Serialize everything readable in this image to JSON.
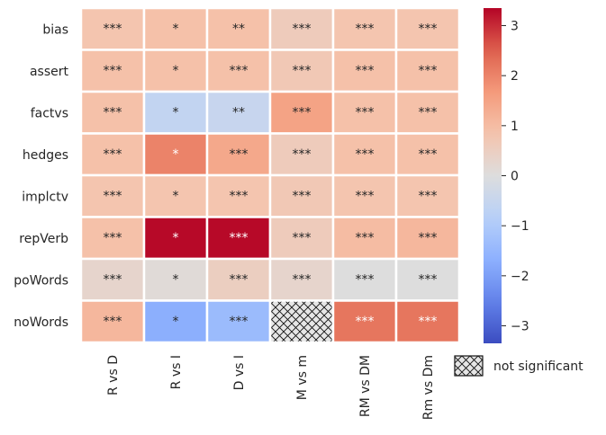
{
  "chart_data": {
    "type": "heatmap",
    "title": "",
    "rows": [
      "bias",
      "assert",
      "factvs",
      "hedges",
      "implctv",
      "repVerb",
      "poWords",
      "noWords"
    ],
    "columns": [
      "R vs D",
      "R vs I",
      "D vs I",
      "M vs m",
      "RM vs DM",
      "Rm vs Dm"
    ],
    "values": [
      [
        0.8,
        0.9,
        0.9,
        0.6,
        0.8,
        0.8
      ],
      [
        0.9,
        0.9,
        0.9,
        0.7,
        0.9,
        0.9
      ],
      [
        0.9,
        -0.6,
        -0.5,
        1.5,
        0.9,
        0.9
      ],
      [
        0.9,
        2.0,
        1.4,
        0.6,
        0.9,
        0.9
      ],
      [
        0.8,
        0.8,
        0.8,
        0.7,
        0.8,
        0.8
      ],
      [
        0.9,
        3.3,
        3.3,
        0.6,
        1.0,
        1.1
      ],
      [
        0.3,
        0.1,
        0.5,
        0.3,
        0.0,
        0.0
      ],
      [
        1.1,
        -1.7,
        -1.4,
        null,
        2.2,
        2.2
      ]
    ],
    "significance": [
      [
        "***",
        "*",
        "**",
        "***",
        "***",
        "***"
      ],
      [
        "***",
        "*",
        "***",
        "***",
        "***",
        "***"
      ],
      [
        "***",
        "*",
        "**",
        "***",
        "***",
        "***"
      ],
      [
        "***",
        "*",
        "***",
        "***",
        "***",
        "***"
      ],
      [
        "***",
        "*",
        "***",
        "***",
        "***",
        "***"
      ],
      [
        "***",
        "*",
        "***",
        "***",
        "***",
        "***"
      ],
      [
        "***",
        "*",
        "***",
        "***",
        "***",
        "***"
      ],
      [
        "***",
        "*",
        "***",
        "",
        "***",
        "***"
      ]
    ],
    "colorbar": {
      "colormap": "coolwarm",
      "vmin": -3.35,
      "vmax": 3.35,
      "ticks": [
        3,
        2,
        1,
        0,
        -1,
        -2,
        -3
      ],
      "tick_labels": [
        "3",
        "2",
        "1",
        "0",
        "−1",
        "−2",
        "−3"
      ]
    },
    "legend": {
      "placement": "bottom-right",
      "label": "not significant",
      "pattern": "cross-hatch"
    },
    "xlabel": "",
    "ylabel": ""
  }
}
